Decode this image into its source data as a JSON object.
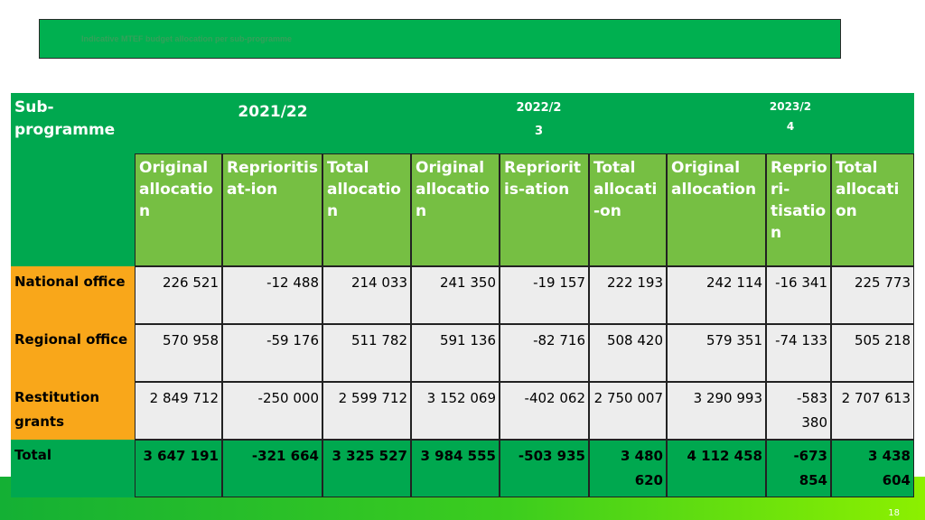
{
  "title": "Indicative MTEF budget allocation per sub-programme",
  "page_number": "18",
  "table": {
    "stub_header": "Sub-\nprogramme",
    "years": [
      "2021/22",
      "2022/2\n3",
      "2023/2\n4"
    ],
    "column_headers": [
      "Original\nallocatio\nn",
      "Reprioritis\nat-ion",
      "Total\nallocatio\nn",
      "Original\nallocatio\nn",
      "Repriorit\nis-ation",
      "Total\nallocati\n-on",
      "Original\nallocation",
      "Reprio\nri-\ntisatio\nn",
      "Total\nallocati\non"
    ],
    "rows": [
      {
        "label": "National office",
        "values": [
          "226 521",
          "-12 488",
          "214 033",
          "241 350",
          "-19 157",
          "222 193",
          "242 114",
          "-16 341",
          "225 773"
        ]
      },
      {
        "label": "Regional office",
        "values": [
          "570 958",
          "-59 176",
          "511 782",
          "591 136",
          "-82 716",
          "508 420",
          "579 351",
          "-74 133",
          "505 218"
        ]
      },
      {
        "label": "Restitution\ngrants",
        "values": [
          "2 849 712",
          "-250 000",
          "2 599 712",
          "3 152 069",
          "-402 062",
          "2 750 007",
          "3 290 993",
          "-583 380",
          "2 707 613"
        ]
      },
      {
        "label": "Total",
        "values": [
          "3 647 191",
          "-321 664",
          "3 325 527",
          "3 984 555",
          "-503 935",
          "3 480 620",
          "4 112 458",
          "-673 854",
          "3 438 604"
        ]
      }
    ]
  },
  "colors": {
    "title_bar": "#00b050",
    "header_dark": "#00a84f",
    "header_light": "#76bf43",
    "row_label": "#f9a71a",
    "cell_bg": "#ededed"
  }
}
